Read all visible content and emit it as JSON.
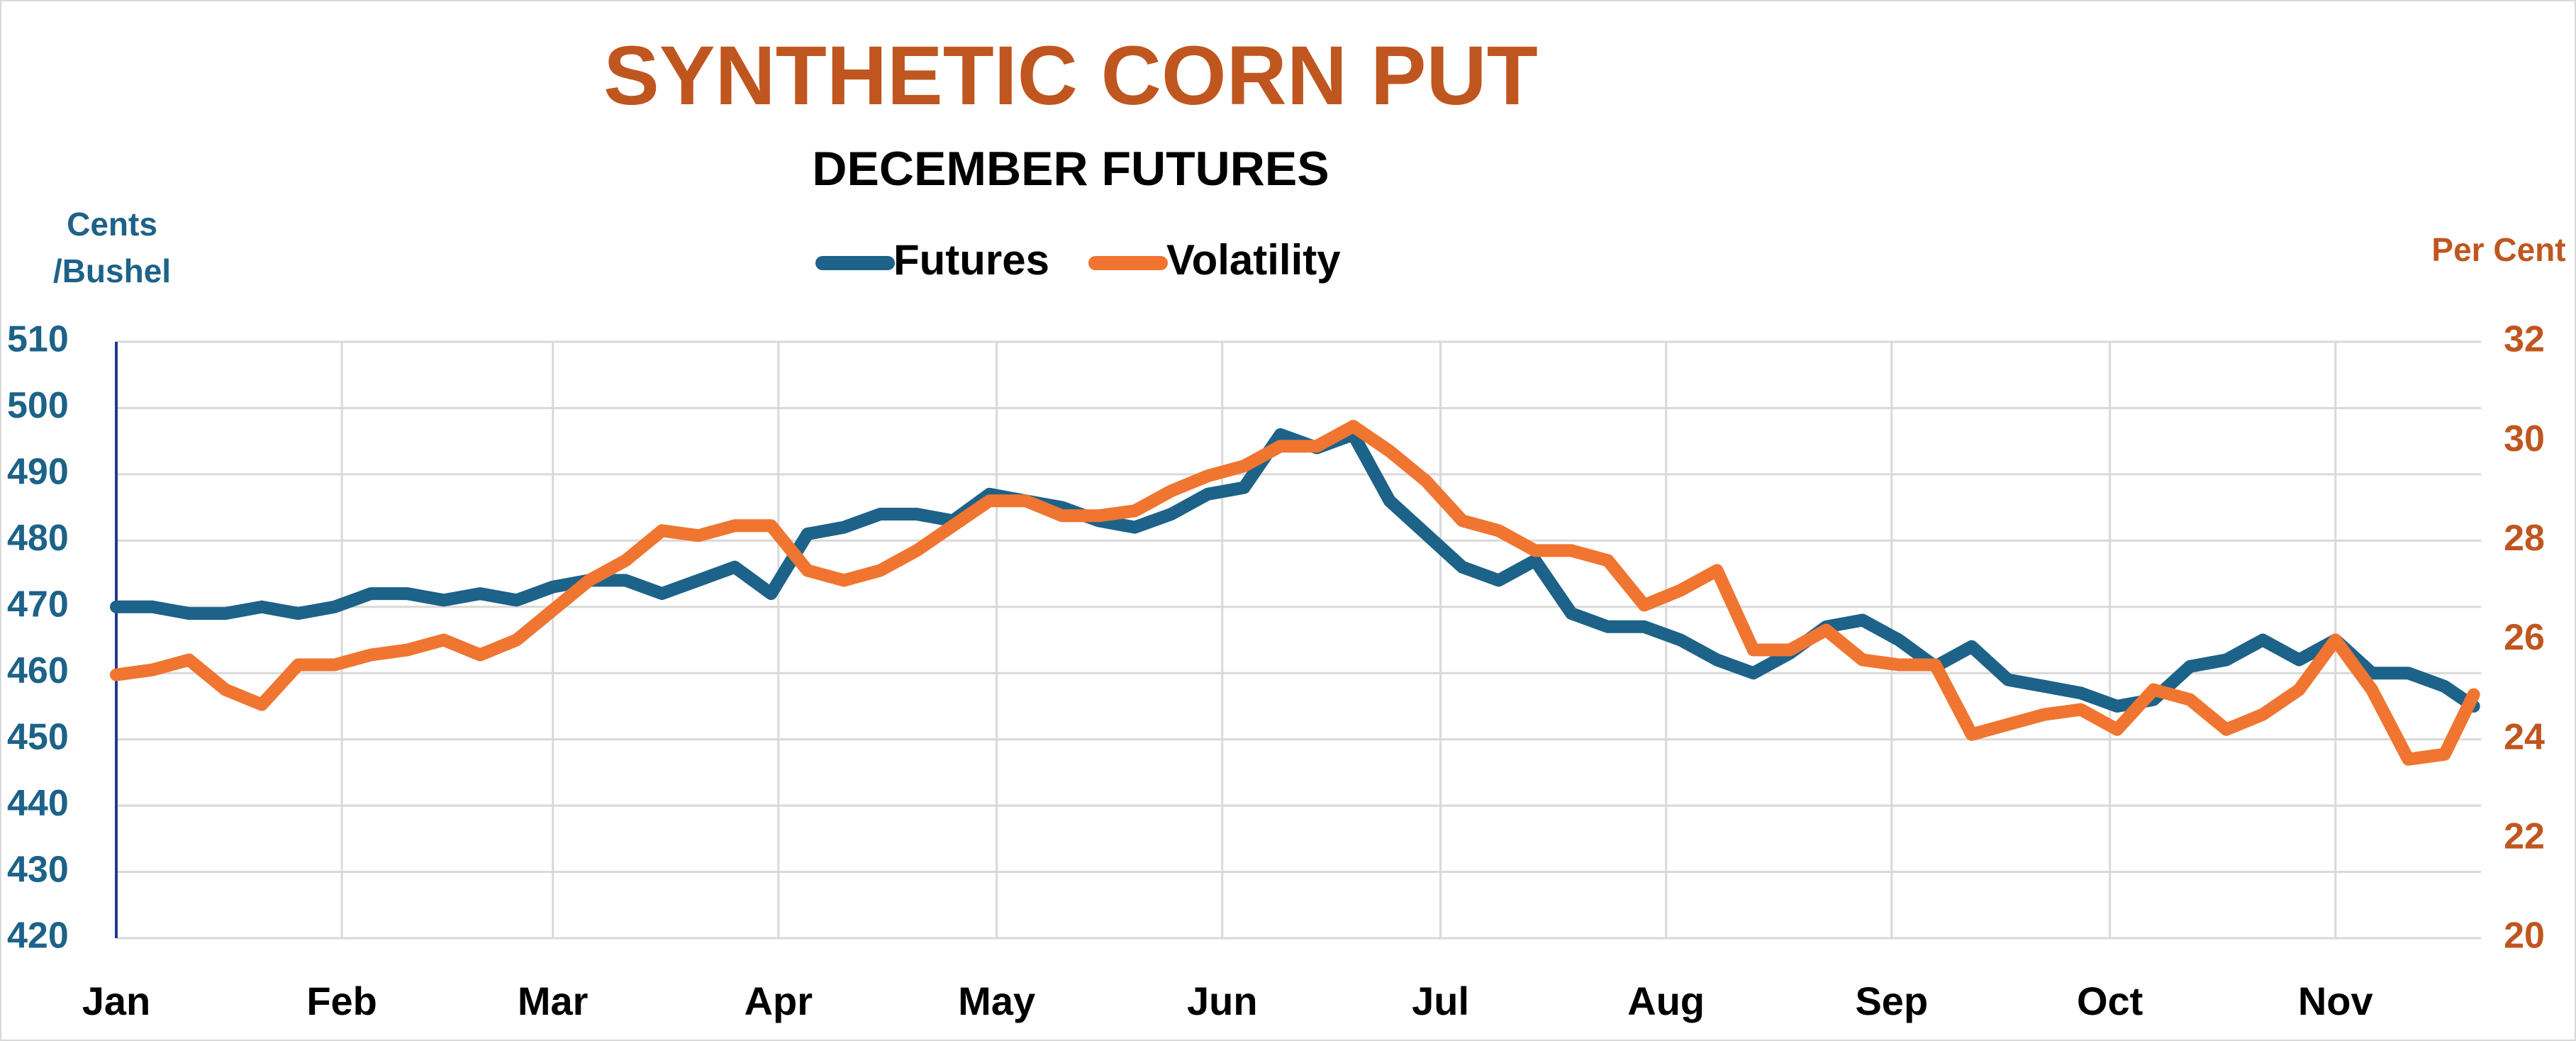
{
  "chart_data": {
    "type": "line",
    "title": "SYNTHETIC CORN PUT",
    "subtitle": "DECEMBER FUTURES",
    "y_label": [
      "Cents",
      "/Bushel"
    ],
    "y2_label": "Per Cent",
    "x": [
      1,
      6,
      11,
      16,
      21,
      26,
      31,
      36,
      41,
      46,
      51,
      56,
      61,
      66,
      71,
      76,
      81,
      86,
      91,
      96,
      101,
      106,
      111,
      116,
      121,
      126,
      131,
      136,
      141,
      146,
      151,
      156,
      161,
      166,
      171,
      176,
      181,
      186,
      191,
      196,
      201,
      206,
      211,
      216,
      221,
      226,
      231,
      236,
      241,
      246,
      251,
      256,
      261,
      266,
      271,
      276,
      281,
      286,
      291,
      296,
      301,
      306,
      311,
      316,
      321,
      325
    ],
    "xlim": [
      1,
      326
    ],
    "xticks": [
      {
        "value": 1,
        "label": "Jan"
      },
      {
        "value": 32,
        "label": "Feb"
      },
      {
        "value": 61,
        "label": "Mar"
      },
      {
        "value": 92,
        "label": "Apr"
      },
      {
        "value": 122,
        "label": "May"
      },
      {
        "value": 153,
        "label": "Jun"
      },
      {
        "value": 183,
        "label": "Jul"
      },
      {
        "value": 214,
        "label": "Aug"
      },
      {
        "value": 245,
        "label": "Sep"
      },
      {
        "value": 275,
        "label": "Oct"
      },
      {
        "value": 306,
        "label": "Nov"
      }
    ],
    "ylim": [
      420,
      510
    ],
    "yticks": [
      420,
      430,
      440,
      450,
      460,
      470,
      480,
      490,
      500,
      510
    ],
    "y2lim": [
      20,
      32
    ],
    "y2ticks": [
      20,
      22,
      24,
      26,
      28,
      30,
      32
    ],
    "grid": true,
    "legend": "top",
    "series": [
      {
        "name": "Futures",
        "color": "#1d6288",
        "values": [
          470,
          470,
          469,
          469,
          470,
          469,
          470,
          472,
          472,
          471,
          472,
          471,
          473,
          474,
          474,
          472,
          474,
          476,
          472,
          481,
          482,
          484,
          484,
          483,
          487,
          486,
          485,
          483,
          482,
          484,
          487,
          488,
          496,
          494,
          496,
          486,
          481,
          476,
          474,
          477,
          469,
          467,
          467,
          465,
          462,
          460,
          463,
          467,
          468,
          465,
          461,
          464,
          459,
          458,
          457,
          455,
          456,
          461,
          462,
          465,
          462,
          465,
          460,
          460,
          458,
          455
        ]
      },
      {
        "name": "Volatility",
        "color": "#f07530",
        "axis": "y2",
        "values": [
          25.3,
          25.4,
          25.6,
          25.0,
          24.7,
          25.5,
          25.5,
          25.7,
          25.8,
          26.0,
          25.7,
          26.0,
          26.6,
          27.2,
          27.6,
          28.2,
          28.1,
          28.3,
          28.3,
          27.4,
          27.2,
          27.4,
          27.8,
          28.3,
          28.8,
          28.8,
          28.5,
          28.5,
          28.6,
          29.0,
          29.3,
          29.5,
          29.9,
          29.9,
          30.3,
          29.8,
          29.2,
          28.4,
          28.2,
          27.8,
          27.8,
          27.6,
          26.7,
          27.0,
          27.4,
          25.8,
          25.8,
          26.2,
          25.6,
          25.5,
          25.5,
          24.1,
          24.3,
          24.5,
          24.6,
          24.2,
          25.0,
          24.8,
          24.2,
          24.5,
          25.0,
          26.0,
          25.0,
          23.6,
          23.7,
          24.9
        ]
      }
    ]
  }
}
